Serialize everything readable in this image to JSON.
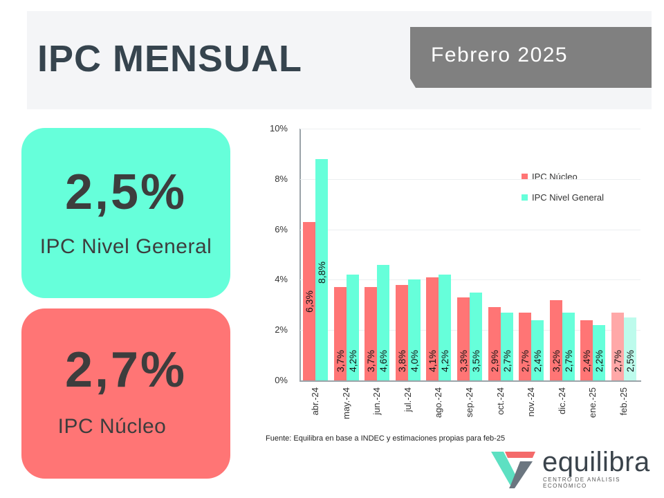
{
  "header": {
    "title": "IPC MENSUAL",
    "date_label": "Febrero 2025"
  },
  "cards": {
    "general": {
      "value": "2,5%",
      "label": "IPC Nivel General",
      "color": "#66ffda"
    },
    "nucleo": {
      "value": "2,7%",
      "label": "IPC Núcleo",
      "color": "#ff7575"
    }
  },
  "legend": {
    "items": [
      {
        "label": "IPC Núcleo",
        "color": "#ff7575"
      },
      {
        "label": "IPC Nivel General",
        "color": "#66ffda"
      }
    ]
  },
  "source": "Fuente: Equilibra en base a INDEC y estimaciones propias para feb-25",
  "logo": {
    "name": "equilibra",
    "subtitle": "CENTRO DE ANÁLISIS ECONÓMICO"
  },
  "chart_data": {
    "type": "bar",
    "title": "",
    "xlabel": "",
    "ylabel": "",
    "ylim": [
      0,
      10
    ],
    "yticks": [
      "0%",
      "2%",
      "4%",
      "6%",
      "8%",
      "10%"
    ],
    "grid": true,
    "legend_position": "upper right",
    "categories": [
      "abr.-24",
      "may.-24",
      "jun.-24",
      "jul.-24",
      "ago.-24",
      "sep.-24",
      "oct.-24",
      "nov.-24",
      "dic.-24",
      "ene.-25",
      "feb.-25"
    ],
    "series": [
      {
        "name": "IPC Núcleo",
        "color": "#ff7575",
        "values": [
          6.3,
          3.7,
          3.7,
          3.8,
          4.1,
          3.3,
          2.9,
          2.7,
          3.2,
          2.4,
          2.7
        ],
        "labels": [
          "6,3%",
          "3,7%",
          "3,7%",
          "3,8%",
          "4,1%",
          "3,3%",
          "2,9%",
          "2,7%",
          "3,2%",
          "2,4%",
          "2,7%"
        ]
      },
      {
        "name": "IPC Nivel General",
        "color": "#66ffda",
        "values": [
          8.8,
          4.2,
          4.6,
          4.0,
          4.2,
          3.5,
          2.7,
          2.4,
          2.7,
          2.2,
          2.5
        ],
        "labels": [
          "8,8%",
          "4,2%",
          "4,6%",
          "4,0%",
          "4,2%",
          "3,5%",
          "2,7%",
          "2,4%",
          "2,7%",
          "2,2%",
          "2,5%"
        ]
      }
    ],
    "annotations": [
      "feb.-25 values are estimates (shown in lighter shade)"
    ],
    "estimate_colors": {
      "IPC Núcleo": "#ffa8a8",
      "IPC Nivel General": "#bdfbec"
    }
  }
}
